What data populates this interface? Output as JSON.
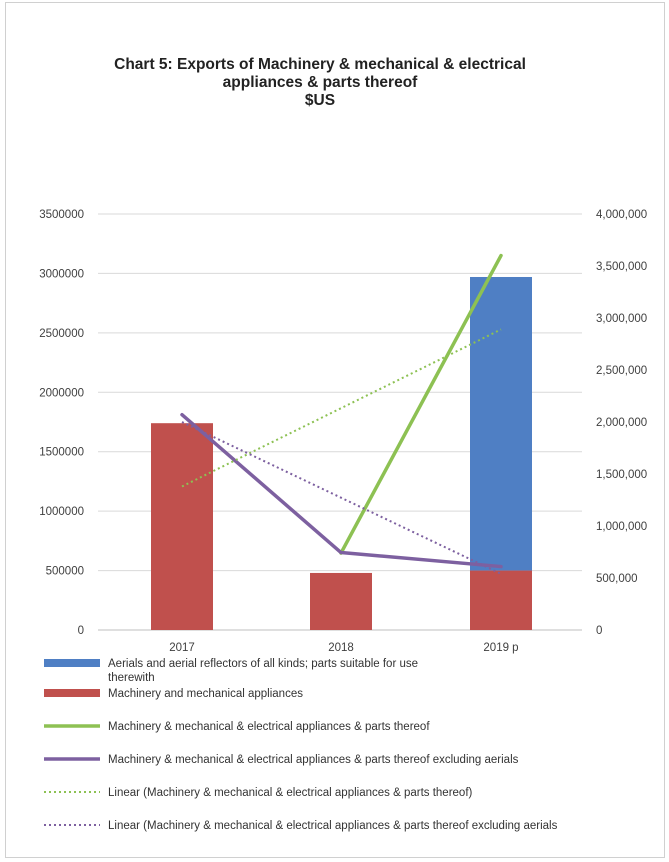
{
  "chart_data": {
    "type": "bar",
    "title_lines": [
      "Chart 5:  Exports of Machinery & mechanical & electrical",
      "appliances & parts thereof",
      "$US"
    ],
    "categories": [
      "2017",
      "2018",
      "2019  p"
    ],
    "primary_axis": {
      "min": 0,
      "max": 3500000,
      "ticks": [
        "0",
        "500000",
        "1000000",
        "1500000",
        "2000000",
        "2500000",
        "3000000",
        "3500000"
      ]
    },
    "secondary_axis": {
      "min": 0,
      "max": 4000000,
      "ticks": [
        "0",
        "500,000",
        "1,000,000",
        "1,500,000",
        "2,000,000",
        "2,500,000",
        "3,000,000",
        "3,500,000",
        "4,000,000"
      ]
    },
    "series": [
      {
        "name": "Aerials and aerial reflectors of all kinds; parts suitable for use therewith",
        "type": "bar",
        "axis": "primary",
        "color": "#4f7fc4",
        "values": [
          null,
          null,
          2970000
        ],
        "base": [
          null,
          null,
          500000
        ]
      },
      {
        "name": "Machinery and mechanical appliances",
        "type": "bar",
        "axis": "primary",
        "color": "#c0504d",
        "values": [
          1740000,
          480000,
          500000
        ]
      },
      {
        "name": "Machinery & mechanical & electrical appliances & parts thereof",
        "type": "line",
        "axis": "secondary",
        "color": "#8dc153",
        "values": [
          null,
          740000,
          3600000
        ]
      },
      {
        "name": "Machinery & mechanical & electrical appliances & parts thereof excluding aerials",
        "type": "line",
        "axis": "secondary",
        "color": "#7d60a0",
        "values": [
          2070000,
          745000,
          610000
        ]
      },
      {
        "name": "Linear (Machinery & mechanical & electrical appliances & parts thereof)",
        "type": "trend",
        "axis": "secondary",
        "color": "#8dc153",
        "values": [
          1380000,
          null,
          2890000
        ]
      },
      {
        "name": "Linear (Machinery & mechanical & electrical appliances & parts thereof excluding aerials",
        "type": "trend",
        "axis": "secondary",
        "color": "#7d60a0",
        "values": [
          2000000,
          null,
          540000
        ]
      }
    ],
    "legend": [
      {
        "kind": "bar",
        "color": "#4f7fc4",
        "lines": [
          "Aerials and aerial reflectors of all kinds; parts suitable for use",
          "therewith"
        ]
      },
      {
        "kind": "bar",
        "color": "#c0504d",
        "lines": [
          "Machinery and mechanical appliances"
        ]
      },
      {
        "kind": "line",
        "color": "#8dc153",
        "lines": [
          "Machinery & mechanical & electrical appliances & parts thereof"
        ]
      },
      {
        "kind": "line",
        "color": "#7d60a0",
        "lines": [
          "Machinery & mechanical & electrical appliances & parts thereof excluding aerials"
        ]
      },
      {
        "kind": "dotted",
        "color": "#8dc153",
        "lines": [
          "Linear (Machinery & mechanical & electrical appliances & parts thereof)"
        ]
      },
      {
        "kind": "dotted",
        "color": "#7d60a0",
        "lines": [
          "Linear (Machinery & mechanical & electrical appliances & parts thereof excluding aerials"
        ]
      }
    ],
    "legend_position": "bottom",
    "grid": true
  }
}
